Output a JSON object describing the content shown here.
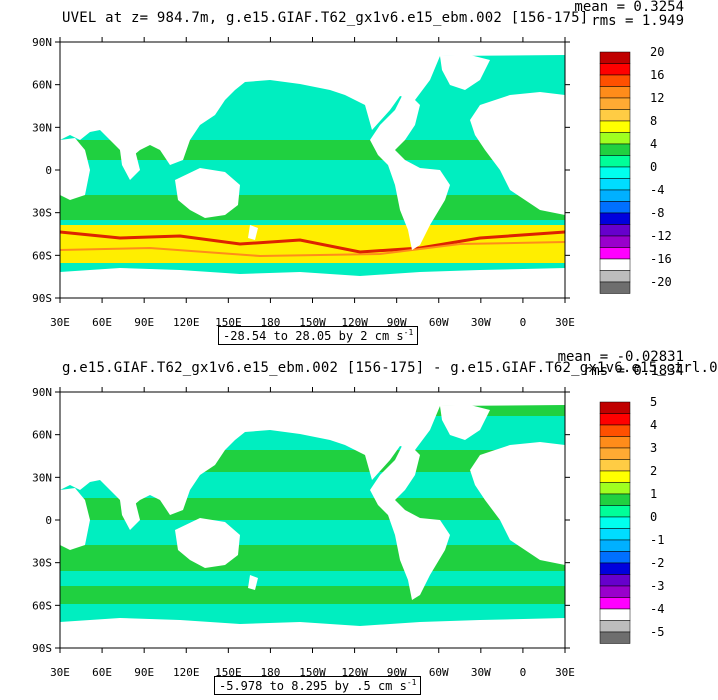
{
  "panels": [
    {
      "title": "UVEL at z= 984.7m, g.e15.GIAF.T62_gx1v6.e15_ebm.002 [156-175]",
      "mean_label": "mean = 0.3254",
      "rms_label": "rms = 1.949",
      "range_label": "-28.54 to 28.05 by 2 cm s",
      "range_unit_exp": "-1",
      "colorbar_labels": [
        "20",
        "16",
        "12",
        "8",
        "4",
        "0",
        "-4",
        "-8",
        "-12",
        "-16",
        "-20"
      ],
      "colorbar_colors": [
        "#c00000",
        "#ff0000",
        "#ff5000",
        "#ff8c1a",
        "#ffaa33",
        "#ffcc44",
        "#ffff00",
        "#a0ff20",
        "#20d040",
        "#00ff99",
        "#00ffee",
        "#00ddff",
        "#00b0ff",
        "#0070ff",
        "#0000dd",
        "#6600cc",
        "#9900cc",
        "#ff00ff",
        "#ffffff",
        "#bdbdbd",
        "#6e6e6e"
      ]
    },
    {
      "title": "g.e15.GIAF.T62_gx1v6.e15_ebm.002 [156-175] - g.e15.GIAF.T62_gx1v6.e15_ctrl.0",
      "mean_label": "mean = -0.02831",
      "rms_label": "rms = 0.1834",
      "range_label": "-5.978 to 8.295 by .5 cm s",
      "range_unit_exp": "-1",
      "colorbar_labels": [
        "5",
        "4",
        "3",
        "2",
        "1",
        "0",
        "-1",
        "-2",
        "-3",
        "-4",
        "-5"
      ],
      "colorbar_colors": [
        "#c00000",
        "#ff0000",
        "#ff5000",
        "#ff8c1a",
        "#ffaa33",
        "#ffcc44",
        "#ffff00",
        "#a0ff20",
        "#20d040",
        "#00ff99",
        "#00ffee",
        "#00ddff",
        "#00b0ff",
        "#0070ff",
        "#0000dd",
        "#6600cc",
        "#9900cc",
        "#ff00ff",
        "#ffffff",
        "#bdbdbd",
        "#6e6e6e"
      ]
    }
  ],
  "axes": {
    "lat_labels": [
      "90N",
      "60N",
      "30N",
      "0",
      "30S",
      "60S",
      "90S"
    ],
    "lon_labels": [
      "30E",
      "60E",
      "90E",
      "120E",
      "150E",
      "180",
      "150W",
      "120W",
      "90W",
      "60W",
      "30W",
      "0",
      "30E"
    ]
  },
  "colors": {
    "ocean_main": "#00eec0",
    "ocean_alt": "#20d040",
    "land": "#ffffff",
    "acc_yellow": "#ffee00",
    "acc_red": "#dd2200"
  }
}
